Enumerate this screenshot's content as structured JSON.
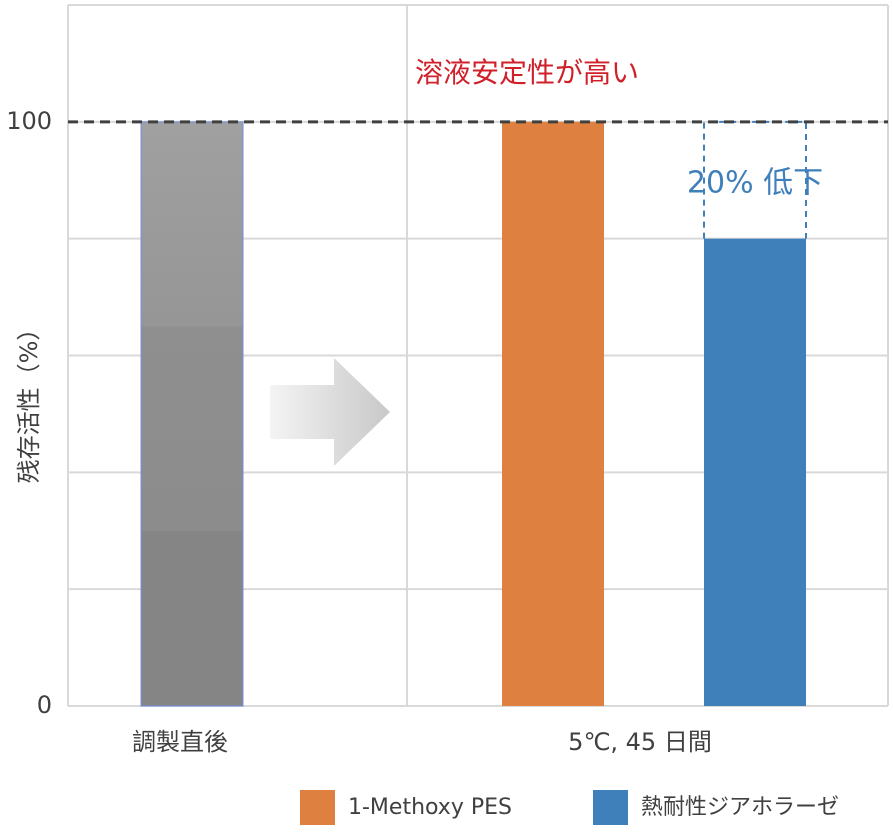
{
  "chart_data": {
    "type": "bar",
    "categories": [
      "調製直後",
      "5℃, 45 日間"
    ],
    "initial": {
      "values": [
        100,
        null
      ],
      "color": "#8c8c8c"
    },
    "series": [
      {
        "name": "1-Methoxy PES",
        "color": "#de8040",
        "values": [
          null,
          100
        ]
      },
      {
        "name": "熱耐性ジアホラーゼ",
        "color": "#3f7fba",
        "values": [
          null,
          80
        ]
      }
    ],
    "y_label": "残存活性（%）",
    "ylim": [
      0,
      120
    ],
    "yticks": [
      0,
      100
    ],
    "gridlines": [
      20,
      40,
      60,
      80,
      100,
      120
    ],
    "reference_line": 100,
    "annotations": [
      "溶液安定性が高い",
      "20% 低下"
    ],
    "annotation_colors": [
      "#d0202a",
      "#3f7fba"
    ]
  }
}
